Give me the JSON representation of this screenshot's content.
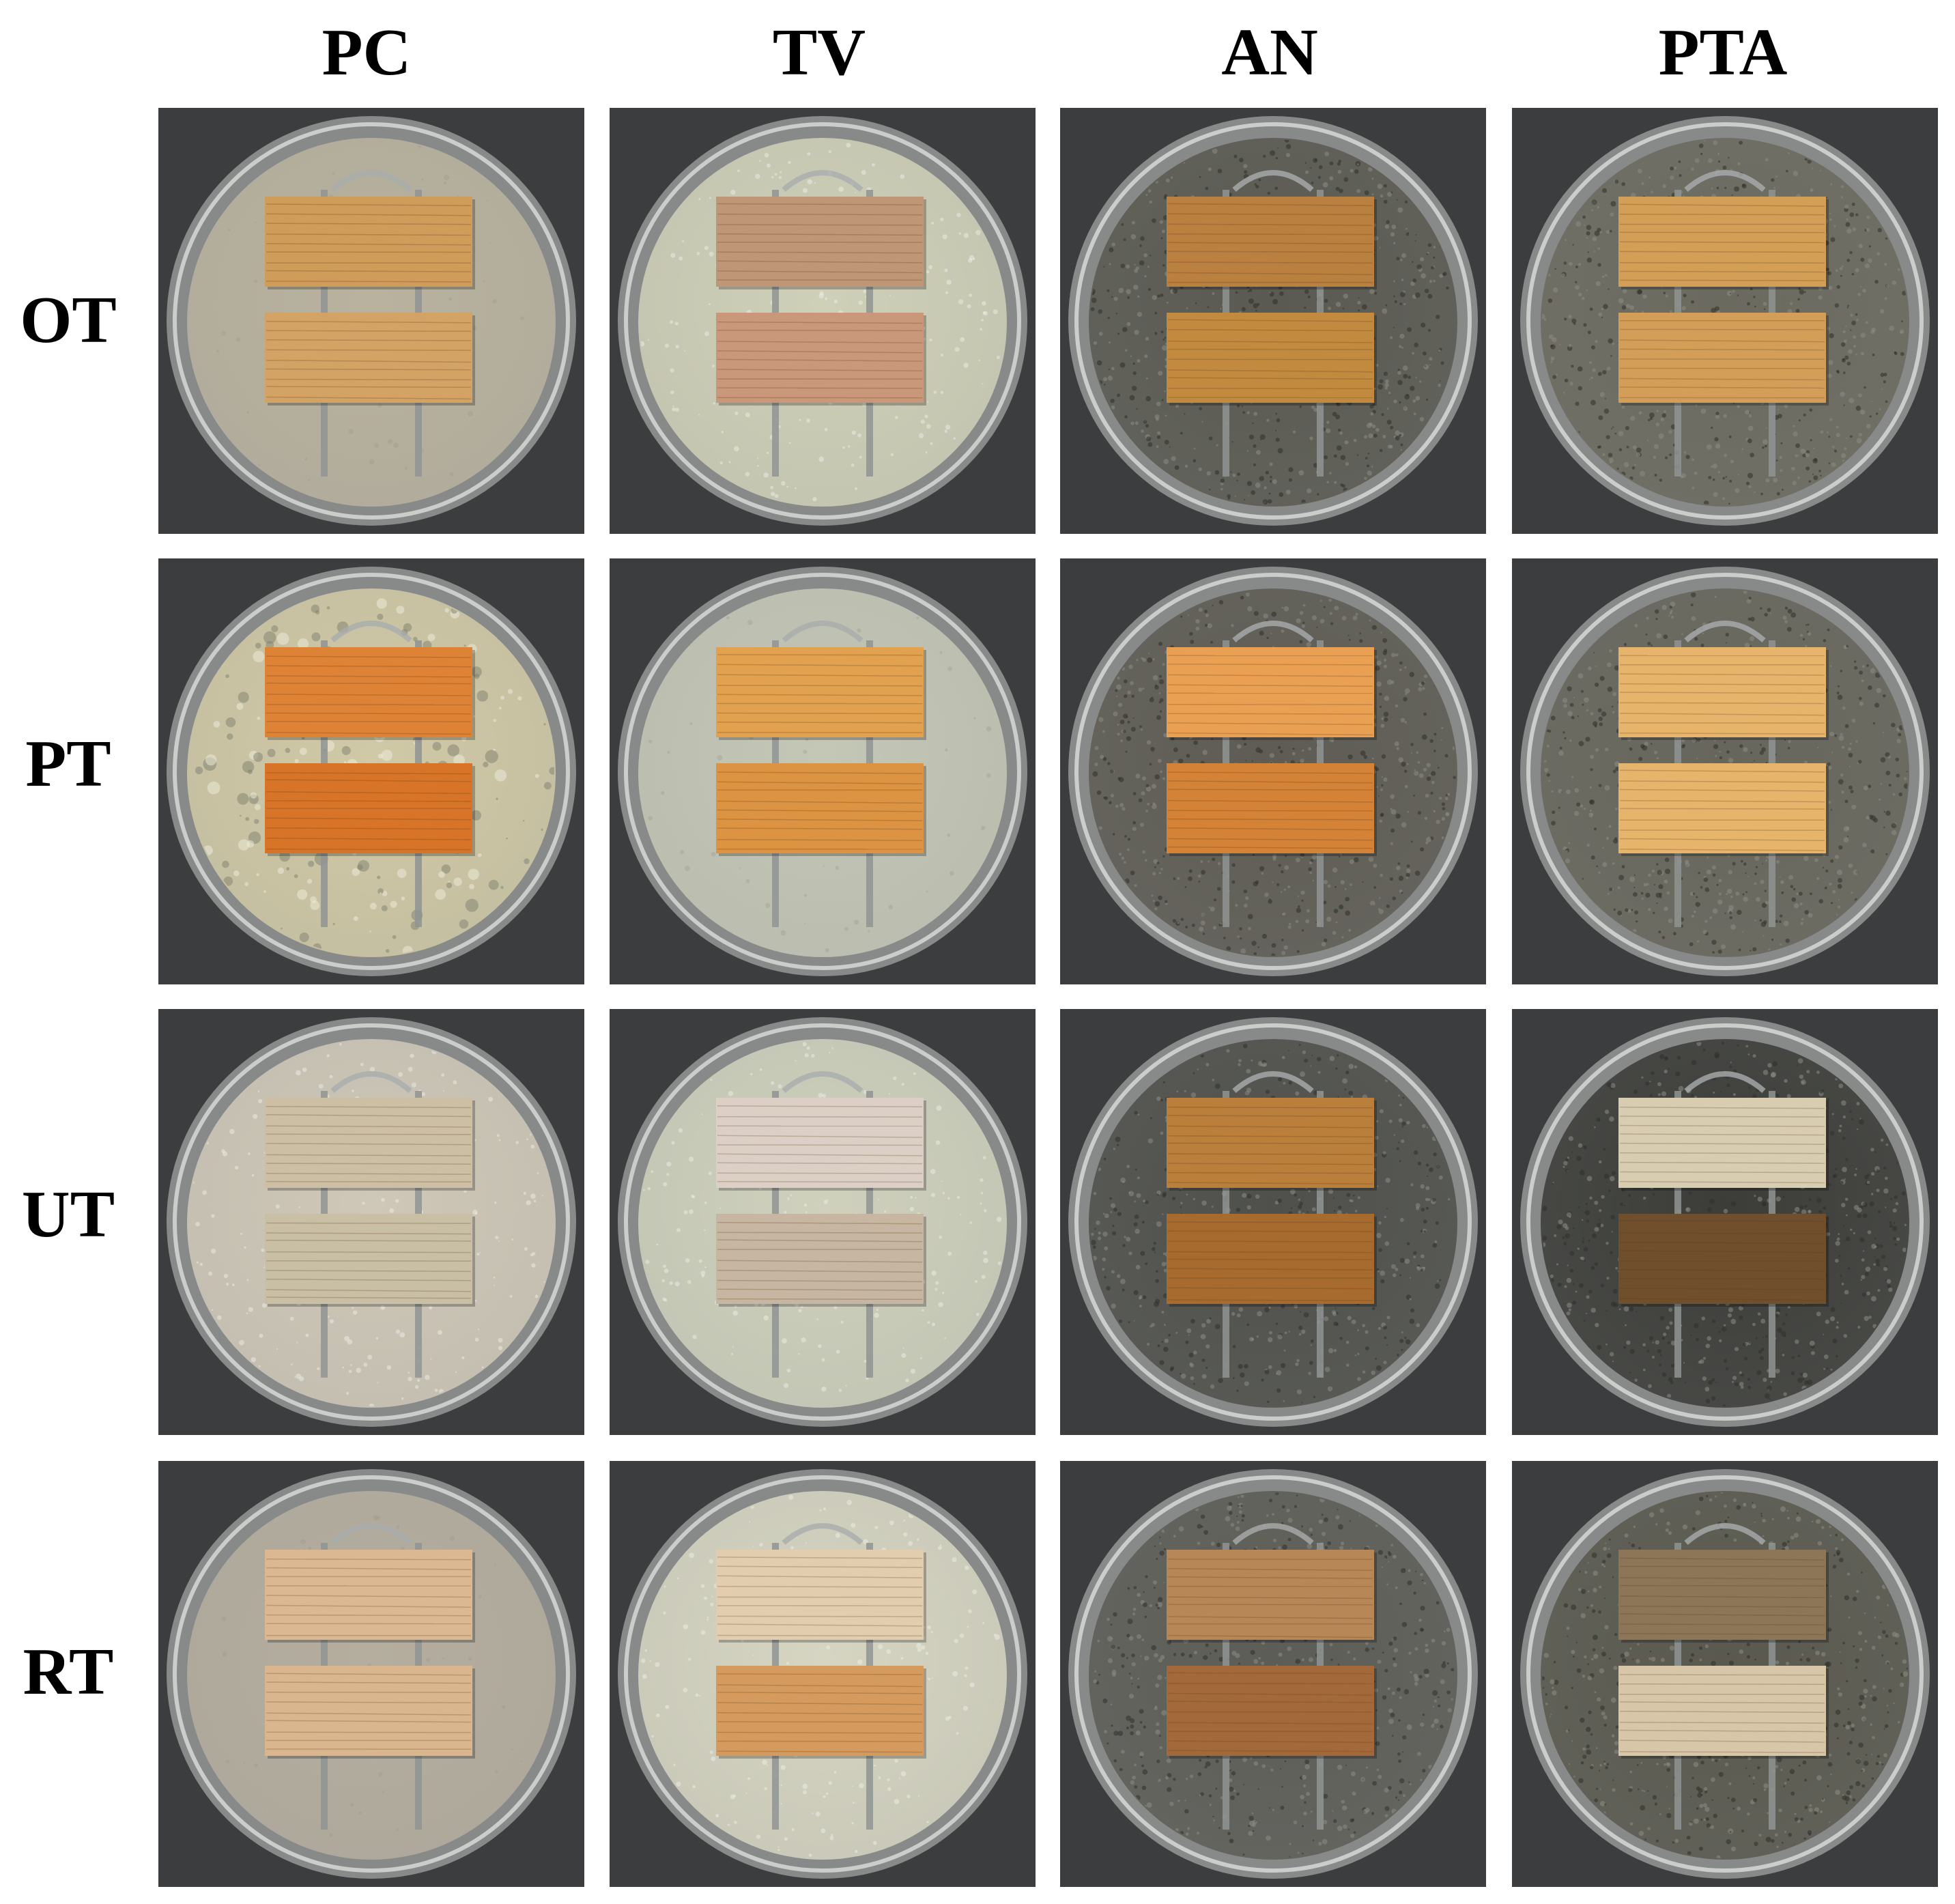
{
  "columns": [
    "PC",
    "TV",
    "AN",
    "PTA"
  ],
  "rows": [
    "OT",
    "PT",
    "UT",
    "RT"
  ],
  "colors": {
    "background": "#3b3d3e",
    "dish_rim": "#c9cbc8",
    "rod": "#8f9493",
    "clip": "#a9adac"
  },
  "panels": [
    [
      {
        "medium": "#b9b29f",
        "wood_top": "#cf9c5a",
        "wood_bottom": "#d3a366",
        "mold": "none"
      },
      {
        "medium": "#cfd0b8",
        "wood_top": "#bf9776",
        "wood_bottom": "#c9977a",
        "mold": "white"
      },
      {
        "medium": "#5a5a52",
        "wood_top": "#b98040",
        "wood_bottom": "#c28a3f",
        "mold": "dark"
      },
      {
        "medium": "#6b6a5f",
        "wood_top": "#d39e56",
        "wood_bottom": "#d39f58",
        "mold": "dark"
      }
    ],
    [
      {
        "medium": "#d0c9a6",
        "wood_top": "#de8235",
        "wood_bottom": "#d87427",
        "mold": "patchy"
      },
      {
        "medium": "#c4c7b6",
        "wood_top": "#e1a14e",
        "wood_bottom": "#dc9342",
        "mold": "none"
      },
      {
        "medium": "#5e5c54",
        "wood_top": "#eaa053",
        "wood_bottom": "#d38236",
        "mold": "dark"
      },
      {
        "medium": "#67665c",
        "wood_top": "#e6b46a",
        "wood_bottom": "#e6b46a",
        "mold": "dark"
      }
    ],
    [
      {
        "medium": "#cfc8b8",
        "wood_top": "#cdbfa4",
        "wood_bottom": "#c9bfa5",
        "mold": "white"
      },
      {
        "medium": "#cfd1bd",
        "wood_top": "#dcd0c6",
        "wood_bottom": "#c7b6a2",
        "mold": "white"
      },
      {
        "medium": "#4f504b",
        "wood_top": "#b97f3b",
        "wood_bottom": "#a86b2f",
        "mold": "dark"
      },
      {
        "medium": "#3c3d39",
        "wood_top": "#d8cdb1",
        "wood_bottom": "#6f4f2c",
        "mold": "dark"
      }
    ],
    [
      {
        "medium": "#b5ae9f",
        "wood_top": "#dbb891",
        "wood_bottom": "#d9b68e",
        "mold": "none"
      },
      {
        "medium": "#d6d5c2",
        "wood_top": "#e2cdae",
        "wood_bottom": "#d59b5e",
        "mold": "white"
      },
      {
        "medium": "#5d5d57",
        "wood_top": "#b88758",
        "wood_bottom": "#a4693a",
        "mold": "dark"
      },
      {
        "medium": "#59594f",
        "wood_top": "#8d7558",
        "wood_bottom": "#d7c7a8",
        "mold": "dark"
      }
    ]
  ]
}
